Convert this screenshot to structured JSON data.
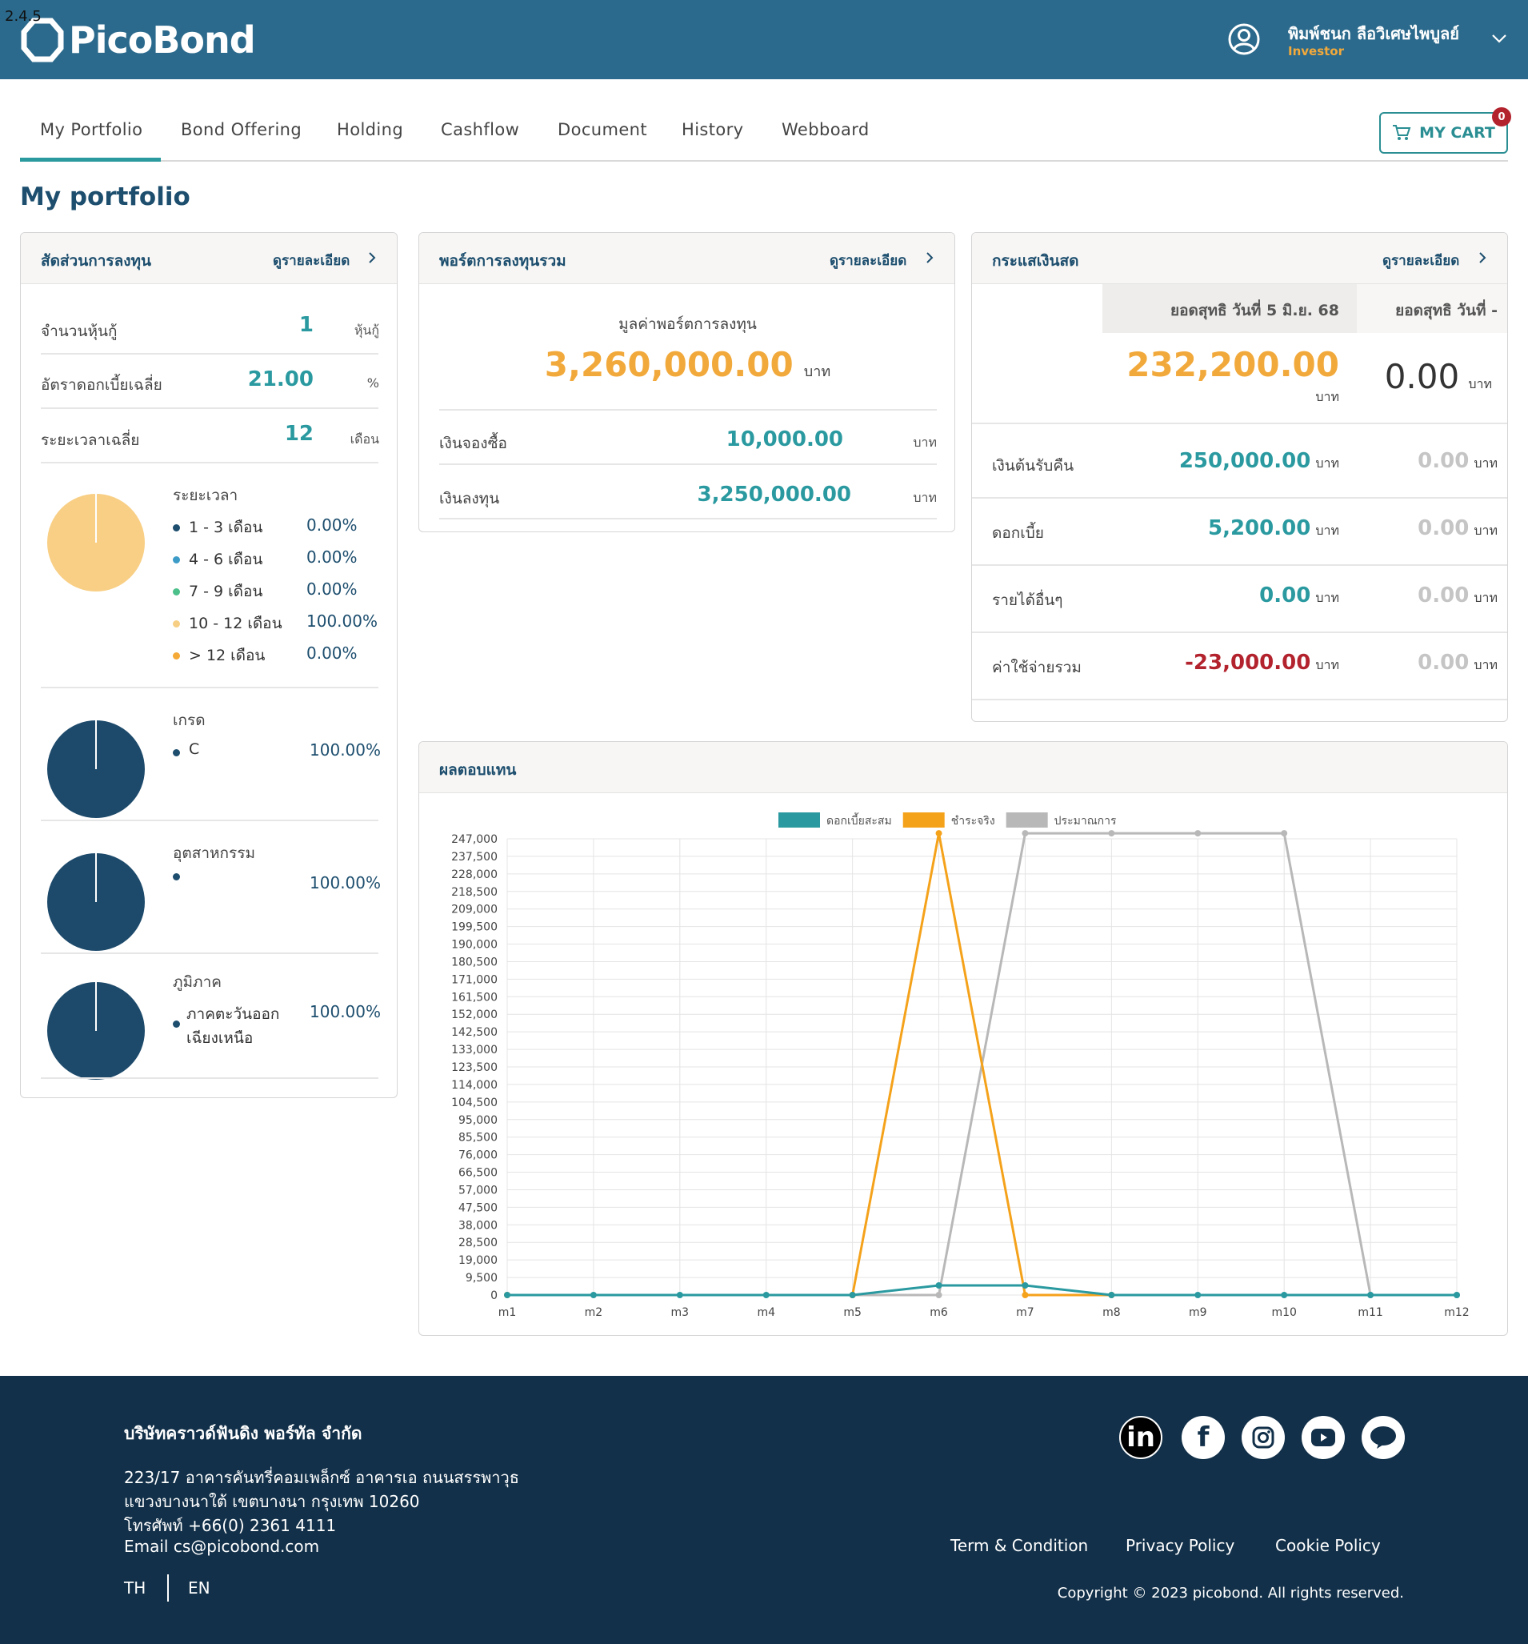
{
  "version": "2.4.5",
  "brand": {
    "name": "PicoBond"
  },
  "user": {
    "name": "พิมพ์ชนก ลือวิเศษไพบูลย์",
    "role": "Investor"
  },
  "nav": {
    "tabs": [
      "My Portfolio",
      "Bond Offering",
      "Holding",
      "Cashflow",
      "Document",
      "History",
      "Webboard"
    ],
    "active": "My Portfolio",
    "cart_label": "MY CART",
    "cart_count": "0"
  },
  "page_title": "My portfolio",
  "allocation": {
    "title": "สัดส่วนการลงทุน",
    "link": "ดูรายละเอียด",
    "stats": [
      {
        "label": "จำนวนหุ้นกู้",
        "value": "1",
        "unit": "หุ้นกู้"
      },
      {
        "label": "อัตราดอกเบี้ยเฉลี่ย",
        "value": "21.00",
        "unit": "%"
      },
      {
        "label": "ระยะเวลาเฉลี่ย",
        "value": "12",
        "unit": "เดือน"
      }
    ],
    "duration": {
      "title": "ระยะเวลา",
      "items": [
        {
          "label": "1 - 3 เดือน",
          "pct": "0.00%",
          "color": "#1d4e6e"
        },
        {
          "label": "4 - 6 เดือน",
          "pct": "0.00%",
          "color": "#3c9bc7"
        },
        {
          "label": "7 - 9 เดือน",
          "pct": "0.00%",
          "color": "#4cc08a"
        },
        {
          "label": "10 - 12 เดือน",
          "pct": "100.00%",
          "color": "#f7cf84"
        },
        {
          "label": "> 12 เดือน",
          "pct": "0.00%",
          "color": "#f5a936"
        }
      ],
      "pie_color": "#f8cf85"
    },
    "grade": {
      "title": "เกรด",
      "items": [
        {
          "label": "C",
          "pct": "100.00%"
        }
      ]
    },
    "industry": {
      "title": "อุตสาหกรรม",
      "items": [
        {
          "label": "",
          "pct": "100.00%"
        }
      ]
    },
    "region": {
      "title": "ภูมิภาค",
      "items": [
        {
          "label_line1": "ภาคตะวันออก",
          "label_line2": "เฉียงเหนือ",
          "pct": "100.00%"
        }
      ]
    },
    "pie_dark_color": "#1d4a6b"
  },
  "portfolio": {
    "title": "พอร์ตการลงทุนรวม",
    "link": "ดูรายละเอียด",
    "value_label": "มูลค่าพอร์ตการลงทุน",
    "value": "3,260,000.00",
    "unit": "บาท",
    "rows": [
      {
        "label": "เงินจองซื้อ",
        "value": "10,000.00",
        "unit": "บาท"
      },
      {
        "label": "เงินลงทุน",
        "value": "3,250,000.00",
        "unit": "บาท"
      }
    ]
  },
  "cashflow": {
    "title": "กระแสเงินสด",
    "link": "ดูรายละเอียด",
    "col1_header": "ยอดสุทธิ วันที่ 5 มิ.ย. 68",
    "col2_header": "ยอดสุทธิ วันที่ -",
    "col1_total": "232,200.00",
    "col2_total": "0.00",
    "unit": "บาท",
    "rows": [
      {
        "label": "เงินต้นรับคืน",
        "v1": "250,000.00",
        "v2": "0.00"
      },
      {
        "label": "ดอกเบี้ย",
        "v1": "5,200.00",
        "v2": "0.00"
      },
      {
        "label": "รายได้อื่นๆ",
        "v1": "0.00",
        "v2": "0.00"
      },
      {
        "label": "ค่าใช้จ่ายรวม",
        "v1": "-23,000.00",
        "v2": "0.00"
      }
    ]
  },
  "returns": {
    "title": "ผลตอบแทน"
  },
  "chart_data": {
    "type": "line",
    "x": [
      "m1",
      "m2",
      "m3",
      "m4",
      "m5",
      "m6",
      "m7",
      "m8",
      "m9",
      "m10",
      "m11",
      "m12"
    ],
    "ylim": [
      0,
      247000
    ],
    "yticks": [
      "247,000",
      "237,500",
      "228,000",
      "218,500",
      "209,000",
      "199,500",
      "190,000",
      "180,500",
      "171,000",
      "161,500",
      "152,000",
      "142,500",
      "133,000",
      "123,500",
      "114,000",
      "104,500",
      "95,000",
      "85,500",
      "76,000",
      "66,500",
      "57,000",
      "47,500",
      "38,000",
      "28,500",
      "19,000",
      "9,500",
      "0"
    ],
    "grid": true,
    "legend_position": "top",
    "series": [
      {
        "name": "ดอกเบี้ยสะสม",
        "color": "#2a9aa0",
        "values": [
          0,
          0,
          0,
          0,
          0,
          5200,
          5200,
          0,
          0,
          0,
          0,
          0
        ]
      },
      {
        "name": "ชำระจริง",
        "color": "#f5a21b",
        "values": [
          0,
          null,
          null,
          null,
          0,
          250000,
          0,
          0,
          null,
          null,
          null,
          null
        ]
      },
      {
        "name": "ประมาณการ",
        "color": "#b8b8b8",
        "values": [
          null,
          null,
          null,
          null,
          0,
          0,
          250000,
          250000,
          250000,
          250000,
          0,
          0
        ]
      }
    ]
  },
  "footer": {
    "company": "บริษัทคราวด์ฟันดิง พอร์ทัล จำกัด",
    "address1": "223/17 อาคารคันทรี่คอมเพล็กซ์ อาคารเอ ถนนสรรพาวุธ",
    "address2": "แขวงบางนาใต้ เขตบางนา กรุงเทพ 10260",
    "phone": "โทรศัพท์ +66(0) 2361 4111",
    "email": "Email cs@picobond.com",
    "lang_th": "TH",
    "lang_en": "EN",
    "links": [
      "Term & Condition",
      "Privacy Policy",
      "Cookie Policy"
    ],
    "copyright": "Copyright © 2023 picobond. All rights reserved.",
    "social": [
      "linkedin-icon",
      "facebook-icon",
      "instagram-icon",
      "youtube-icon",
      "line-icon"
    ]
  }
}
